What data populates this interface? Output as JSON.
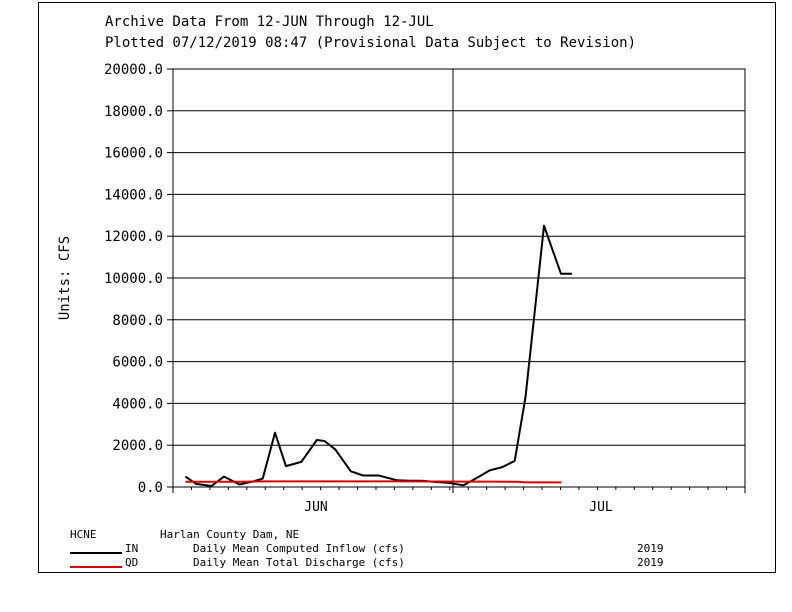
{
  "header": {
    "line1": "Archive Data From 12-JUN Through 12-JUL",
    "line2": "Plotted 07/12/2019  08:47 (Provisional Data Subject to Revision)"
  },
  "legend": {
    "station_code": "HCNE",
    "station_name": "Harlan County Dam, NE",
    "entries": [
      {
        "code": "IN",
        "desc": "Daily Mean Computed Inflow (cfs)",
        "year": "2019",
        "color": "#000000"
      },
      {
        "code": "QD",
        "desc": "Daily Mean Total Discharge (cfs)",
        "year": "2019",
        "color": "#d40000"
      }
    ]
  },
  "chart_data": {
    "type": "line",
    "title": "Archive Data From 12-JUN Through 12-JUL",
    "ylabel": "Units: CFS",
    "ylim": [
      0,
      20000
    ],
    "yticks": [
      "20000.0",
      "18000.0",
      "16000.0",
      "16000.0",
      "14000.0",
      "12000.0",
      "10000.0",
      "8000.0",
      "6000.0",
      "4000.0",
      "2000.0",
      "0.0"
    ],
    "xlim_days": [
      0,
      31
    ],
    "xcategories": [
      {
        "label": "JUN",
        "center_day": 9.5
      },
      {
        "label": "JUL",
        "center_day": 24.5
      }
    ],
    "series": [
      {
        "name": "IN",
        "color": "#000000",
        "x": [
          12.5,
          13.2,
          14.2,
          15.0,
          16.0,
          16.8,
          17.5,
          18.3,
          19.0,
          20.0,
          21.0,
          21.5,
          22.2,
          23.2,
          24.0,
          25.0,
          26.2,
          27.0,
          27.8,
          28.5,
          29.5,
          30.5,
          31.5,
          32.2,
          33.0,
          33.8,
          34.5,
          35.7,
          36.8,
          37.5
        ],
        "y": [
          500,
          150,
          50,
          500,
          120,
          250,
          400,
          2600,
          1000,
          1200,
          2250,
          2200,
          1800,
          750,
          550,
          550,
          320,
          300,
          300,
          250,
          200,
          80,
          500,
          800,
          950,
          1250,
          4300,
          12500,
          10200,
          10200
        ]
      },
      {
        "name": "QD",
        "color": "#d40000",
        "x": [
          12.5,
          16.0,
          17.5,
          27.0,
          30.5,
          32.5,
          34.0,
          34.5,
          36.8
        ],
        "y": [
          250,
          250,
          270,
          270,
          260,
          260,
          250,
          220,
          220
        ]
      }
    ]
  }
}
